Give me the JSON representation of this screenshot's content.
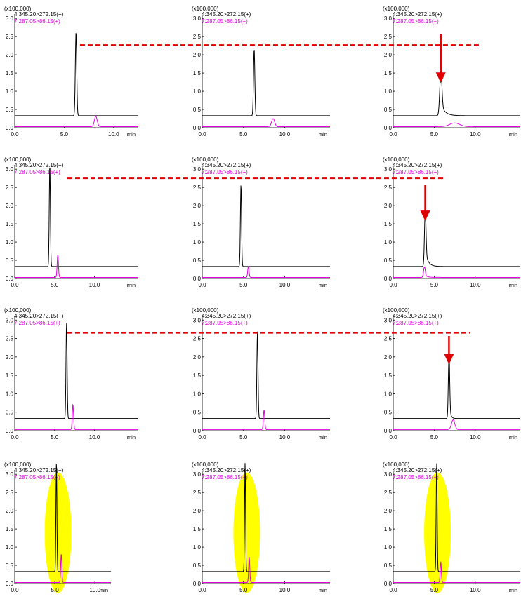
{
  "colors": {
    "trace_black": "#000000",
    "trace_magenta": "#e000e0",
    "dashed_reference": "#e00000",
    "arrow": "#e00000",
    "highlight": "#ffff00"
  },
  "chart_data": [
    {
      "type": "line",
      "panel": "r1c1",
      "scale_label": "(x100,000)",
      "legend": [
        "4:345.20>272.15(+)",
        "7:287.05>86.15(+)"
      ],
      "x_unit": "min",
      "x_ticks": [
        "0.0",
        "5.0",
        "10.0"
      ],
      "y_ticks": [
        "0.0",
        "0.5",
        "1.0",
        "1.5",
        "2.0",
        "2.5",
        "3.0"
      ],
      "xlim": [
        0,
        12.5
      ],
      "ylim": [
        0,
        3.1
      ],
      "series": [
        {
          "baseline": 0.33,
          "peak_x": 6.2,
          "peak_y": 2.3,
          "width": 0.07,
          "tail": 0
        },
        {
          "baseline": 0.03,
          "peak_x": 8.2,
          "peak_y": 0.28,
          "width": 0.14,
          "tail": 0
        }
      ],
      "reference_line_y": 2.27
    },
    {
      "type": "line",
      "panel": "r1c2",
      "scale_label": "(x100,000)",
      "legend": [
        "4:345.20>272.15(+)",
        "7:287.05>86.15(+)"
      ],
      "x_unit": "min",
      "x_ticks": [
        "0.0",
        "5.0",
        "10.0"
      ],
      "y_ticks": [
        "0.0",
        "0.5",
        "1.0",
        "1.5",
        "2.0",
        "2.5",
        "3.0"
      ],
      "xlim": [
        0,
        15.5
      ],
      "ylim": [
        0,
        3.1
      ],
      "series": [
        {
          "baseline": 0.33,
          "peak_x": 6.3,
          "peak_y": 1.84,
          "width": 0.08,
          "tail": 0
        },
        {
          "baseline": 0.03,
          "peak_x": 8.6,
          "peak_y": 0.22,
          "width": 0.18,
          "tail": 0
        }
      ]
    },
    {
      "type": "line",
      "panel": "r1c3",
      "scale_label": "(x100,000)",
      "legend": [
        "4:345.20>272.15(+)",
        "7:287.05>86.15(+)"
      ],
      "x_unit": "min",
      "x_ticks": [
        "0.0",
        "5.0",
        "10.0"
      ],
      "y_ticks": [
        "0.0",
        "0.5",
        "1.0",
        "1.5",
        "2.0",
        "2.5",
        "3.0"
      ],
      "xlim": [
        0,
        15.5
      ],
      "ylim": [
        0,
        3.1
      ],
      "series": [
        {
          "baseline": 0.33,
          "peak_x": 5.8,
          "peak_y": 1.15,
          "width": 0.13,
          "tail": 0.5
        },
        {
          "baseline": 0.03,
          "peak_x": 7.5,
          "peak_y": 0.1,
          "width": 0.6,
          "tail": 0
        }
      ],
      "arrow_x": 5.8
    },
    {
      "type": "line",
      "panel": "r2c1",
      "scale_label": "(x100,000)",
      "legend": [
        "4:345.20>272.15(+)",
        "7:287.05>86.15(+)"
      ],
      "x_unit": "min",
      "x_ticks": [
        "0.0",
        "5.0",
        "10.0"
      ],
      "y_ticks": [
        "0.0",
        "0.5",
        "1.0",
        "1.5",
        "2.0",
        "2.5",
        "3.0"
      ],
      "xlim": [
        0,
        15.5
      ],
      "ylim": [
        0,
        3.1
      ],
      "series": [
        {
          "baseline": 0.33,
          "peak_x": 4.4,
          "peak_y": 2.8,
          "width": 0.07,
          "tail": 0
        },
        {
          "baseline": 0.03,
          "peak_x": 5.4,
          "peak_y": 0.62,
          "width": 0.08,
          "tail": 0
        }
      ],
      "reference_line_y": 2.75
    },
    {
      "type": "line",
      "panel": "r2c2",
      "scale_label": "(x100,000)",
      "legend": [
        "4:345.20>272.15(+)",
        "7:287.05>86.15(+)"
      ],
      "x_unit": "min",
      "x_ticks": [
        "0.0",
        "5.0",
        "10.0"
      ],
      "y_ticks": [
        "0.0",
        "0.5",
        "1.0",
        "1.5",
        "2.0",
        "2.5",
        "3.0"
      ],
      "xlim": [
        0,
        15.5
      ],
      "ylim": [
        0,
        3.1
      ],
      "series": [
        {
          "baseline": 0.33,
          "peak_x": 4.7,
          "peak_y": 2.25,
          "width": 0.07,
          "tail": 0
        },
        {
          "baseline": 0.03,
          "peak_x": 5.6,
          "peak_y": 0.31,
          "width": 0.08,
          "tail": 0
        }
      ]
    },
    {
      "type": "line",
      "panel": "r2c3",
      "scale_label": "(x100,000)",
      "legend": [
        "4:345.20>272.15(+)",
        "7:287.05>86.15(+)"
      ],
      "x_unit": "min",
      "x_ticks": [
        "0.0",
        "5.0",
        "10.0"
      ],
      "y_ticks": [
        "0.0",
        "0.5",
        "1.0",
        "1.5",
        "2.0",
        "2.5",
        "3.0"
      ],
      "xlim": [
        0,
        15.5
      ],
      "ylim": [
        0,
        3.1
      ],
      "series": [
        {
          "baseline": 0.33,
          "peak_x": 3.9,
          "peak_y": 1.5,
          "width": 0.09,
          "tail": 0.35
        },
        {
          "baseline": 0.03,
          "peak_x": 3.8,
          "peak_y": 0.28,
          "width": 0.1,
          "tail": 0.3
        }
      ],
      "arrow_x": 3.9
    },
    {
      "type": "line",
      "panel": "r3c1",
      "scale_label": "(x100,000)",
      "legend": [
        "4:345.20>272.15(+)",
        "7:287.05>86.15(+)"
      ],
      "x_unit": "min",
      "x_ticks": [
        "0.0",
        "5.0",
        "10.0"
      ],
      "y_ticks": [
        "0.0",
        "0.5",
        "1.0",
        "1.5",
        "2.0",
        "2.5",
        "3.0"
      ],
      "xlim": [
        0,
        15.5
      ],
      "ylim": [
        0,
        3.1
      ],
      "series": [
        {
          "baseline": 0.33,
          "peak_x": 6.5,
          "peak_y": 2.62,
          "width": 0.07,
          "tail": 0
        },
        {
          "baseline": 0.03,
          "peak_x": 7.3,
          "peak_y": 0.68,
          "width": 0.08,
          "tail": 0
        }
      ],
      "reference_line_y": 2.65
    },
    {
      "type": "line",
      "panel": "r3c2",
      "scale_label": "(x100,000)",
      "legend": [
        "4:345.20>272.15(+)",
        "7:287.05>86.15(+)"
      ],
      "x_unit": "min",
      "x_ticks": [
        "0.0",
        "5.0",
        "10.0"
      ],
      "y_ticks": [
        "0.0",
        "0.5",
        "1.0",
        "1.5",
        "2.0",
        "2.5",
        "3.0"
      ],
      "xlim": [
        0,
        15.5
      ],
      "ylim": [
        0,
        3.1
      ],
      "series": [
        {
          "baseline": 0.33,
          "peak_x": 6.7,
          "peak_y": 2.36,
          "width": 0.07,
          "tail": 0
        },
        {
          "baseline": 0.03,
          "peak_x": 7.5,
          "peak_y": 0.54,
          "width": 0.08,
          "tail": 0
        }
      ]
    },
    {
      "type": "line",
      "panel": "r3c3",
      "scale_label": "(x100,000)",
      "legend": [
        "4:345.20>272.15(+)",
        "7:287.05>86.15(+)"
      ],
      "x_unit": "min",
      "x_ticks": [
        "0.0",
        "5.0",
        "10.0"
      ],
      "y_ticks": [
        "0.0",
        "0.5",
        "1.0",
        "1.5",
        "2.0",
        "2.5",
        "3.0"
      ],
      "xlim": [
        0,
        15.5
      ],
      "ylim": [
        0,
        3.1
      ],
      "series": [
        {
          "baseline": 0.33,
          "peak_x": 6.8,
          "peak_y": 1.72,
          "width": 0.08,
          "tail": 0.15
        },
        {
          "baseline": 0.03,
          "peak_x": 7.3,
          "peak_y": 0.26,
          "width": 0.2,
          "tail": 0.1
        }
      ],
      "arrow_x": 6.8
    },
    {
      "type": "line",
      "panel": "r4c1",
      "scale_label": "(x100,000)",
      "legend": [
        "4:345.20>272.15(+)",
        "7:287.05>86.15(+)"
      ],
      "x_unit": "min",
      "x_ticks": [
        "0.0",
        "5.0",
        "10.0"
      ],
      "y_ticks": [
        "0.0",
        "0.5",
        "1.0",
        "1.5",
        "2.0",
        "2.5",
        "3.0"
      ],
      "xlim": [
        0,
        12
      ],
      "ylim": [
        0,
        3.1
      ],
      "series": [
        {
          "baseline": 0.33,
          "peak_x": 5.2,
          "peak_y": 3.0,
          "width": 0.06,
          "tail": 0
        },
        {
          "baseline": 0.03,
          "peak_x": 5.8,
          "peak_y": 0.78,
          "width": 0.07,
          "tail": 0
        }
      ],
      "highlight_x": 5.4
    },
    {
      "type": "line",
      "panel": "r4c2",
      "scale_label": "(x100,000)",
      "legend": [
        "4:345.20>272.15(+)",
        "7:287.05>86.15(+)"
      ],
      "x_unit": "min",
      "x_ticks": [
        "0.0",
        "5.0",
        "10.0"
      ],
      "y_ticks": [
        "0.0",
        "0.5",
        "1.0",
        "1.5",
        "2.0",
        "2.5",
        "3.0"
      ],
      "xlim": [
        0,
        15.5
      ],
      "ylim": [
        0,
        3.1
      ],
      "series": [
        {
          "baseline": 0.33,
          "peak_x": 5.2,
          "peak_y": 3.0,
          "width": 0.06,
          "tail": 0
        },
        {
          "baseline": 0.03,
          "peak_x": 5.7,
          "peak_y": 0.7,
          "width": 0.07,
          "tail": 0
        }
      ],
      "highlight_x": 5.4
    },
    {
      "type": "line",
      "panel": "r4c3",
      "scale_label": "(x100,000)",
      "legend": [
        "4:345.20>272.15(+)",
        "7:287.05>86.15(+)"
      ],
      "x_unit": "min",
      "x_ticks": [
        "0.0",
        "5.0",
        "10.0"
      ],
      "y_ticks": [
        "0.0",
        "0.5",
        "1.0",
        "1.5",
        "2.0",
        "2.5",
        "3.0"
      ],
      "xlim": [
        0,
        15.5
      ],
      "ylim": [
        0,
        3.1
      ],
      "series": [
        {
          "baseline": 0.33,
          "peak_x": 5.3,
          "peak_y": 3.0,
          "width": 0.06,
          "tail": 0
        },
        {
          "baseline": 0.03,
          "peak_x": 5.8,
          "peak_y": 0.58,
          "width": 0.07,
          "tail": 0
        }
      ],
      "highlight_x": 5.4
    }
  ]
}
